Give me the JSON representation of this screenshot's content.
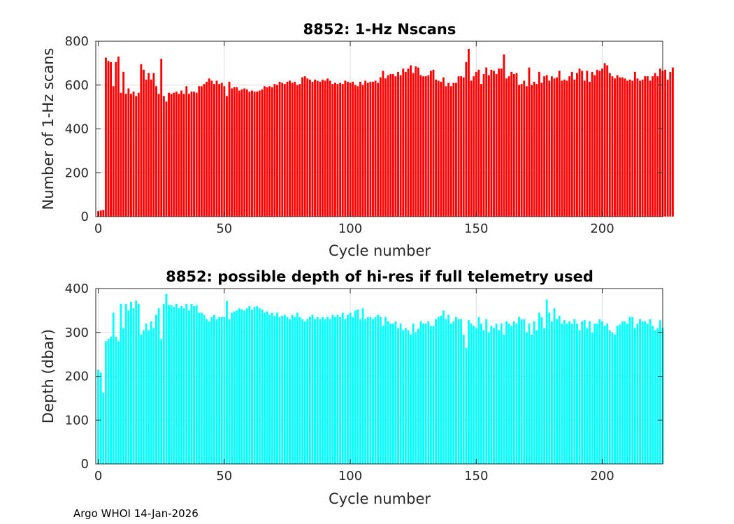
{
  "footer": "Argo WHOI 14-Jan-2026",
  "chart_data": [
    {
      "type": "bar",
      "title": "8852: 1-Hz Nscans",
      "xlabel": "Cycle number",
      "ylabel": "Number of 1-Hz scans",
      "xlim": [
        -1,
        224
      ],
      "ylim": [
        0,
        800
      ],
      "xticks": [
        0,
        50,
        100,
        150,
        200
      ],
      "yticks": [
        0,
        200,
        400,
        600,
        800
      ],
      "grid": true,
      "color": "#ff0000",
      "x_start": 0,
      "values": [
        25,
        28,
        30,
        725,
        710,
        705,
        595,
        705,
        730,
        565,
        660,
        560,
        585,
        560,
        570,
        550,
        565,
        695,
        670,
        625,
        655,
        625,
        655,
        595,
        560,
        720,
        550,
        525,
        565,
        560,
        565,
        570,
        560,
        575,
        560,
        595,
        560,
        570,
        570,
        565,
        595,
        595,
        605,
        615,
        630,
        620,
        605,
        620,
        605,
        610,
        595,
        550,
        615,
        585,
        590,
        590,
        575,
        580,
        585,
        580,
        570,
        575,
        570,
        570,
        575,
        580,
        595,
        590,
        595,
        590,
        605,
        600,
        615,
        610,
        605,
        615,
        620,
        610,
        615,
        600,
        605,
        635,
        640,
        630,
        625,
        615,
        625,
        620,
        615,
        625,
        620,
        630,
        620,
        605,
        610,
        605,
        610,
        605,
        620,
        615,
        610,
        615,
        600,
        595,
        615,
        600,
        620,
        610,
        615,
        615,
        620,
        610,
        635,
        665,
        630,
        645,
        650,
        650,
        640,
        660,
        645,
        675,
        660,
        675,
        690,
        655,
        685,
        680,
        645,
        640,
        640,
        645,
        665,
        670,
        625,
        620,
        615,
        635,
        595,
        610,
        595,
        610,
        610,
        640,
        640,
        635,
        705,
        765,
        620,
        640,
        660,
        670,
        605,
        650,
        680,
        645,
        670,
        665,
        650,
        675,
        675,
        740,
        630,
        640,
        660,
        650,
        655,
        600,
        605,
        620,
        595,
        680,
        600,
        615,
        605,
        660,
        610,
        640,
        645,
        620,
        640,
        630,
        635,
        665,
        620,
        625,
        620,
        640,
        660,
        625,
        655,
        675,
        665,
        620,
        665,
        615,
        660,
        645,
        670,
        665,
        675,
        700,
        690,
        655,
        640,
        630,
        645,
        635,
        635,
        630,
        620,
        625,
        620,
        660,
        630,
        620,
        625,
        640,
        640,
        620,
        640,
        655,
        640,
        675,
        665,
        670,
        625,
        660,
        680
      ]
    },
    {
      "type": "bar",
      "title": "8852: possible depth of hi-res if full telemetry used",
      "xlabel": "Cycle number",
      "ylabel": "Depth (dbar)",
      "xlim": [
        -1,
        224
      ],
      "ylim": [
        0,
        400
      ],
      "xticks": [
        0,
        50,
        100,
        150,
        200
      ],
      "yticks": [
        0,
        100,
        200,
        300,
        400
      ],
      "grid": true,
      "color": "#00ffff",
      "x_start": 0,
      "values": [
        215,
        208,
        163,
        280,
        285,
        290,
        345,
        290,
        280,
        365,
        310,
        365,
        350,
        370,
        355,
        372,
        365,
        295,
        305,
        320,
        305,
        325,
        310,
        340,
        355,
        285,
        365,
        388,
        362,
        362,
        358,
        365,
        355,
        360,
        355,
        365,
        350,
        365,
        360,
        362,
        345,
        345,
        340,
        330,
        325,
        335,
        340,
        330,
        335,
        335,
        335,
        372,
        330,
        345,
        348,
        350,
        355,
        352,
        350,
        355,
        360,
        352,
        358,
        360,
        355,
        352,
        345,
        348,
        340,
        345,
        338,
        345,
        335,
        338,
        340,
        335,
        330,
        340,
        335,
        345,
        335,
        330,
        325,
        330,
        335,
        340,
        330,
        335,
        330,
        335,
        330,
        335,
        330,
        340,
        335,
        340,
        335,
        345,
        330,
        340,
        345,
        335,
        350,
        352,
        330,
        355,
        330,
        335,
        335,
        330,
        335,
        340,
        335,
        315,
        335,
        325,
        320,
        320,
        325,
        310,
        320,
        305,
        310,
        305,
        295,
        320,
        300,
        308,
        325,
        320,
        320,
        325,
        315,
        315,
        330,
        335,
        338,
        350,
        330,
        340,
        320,
        325,
        335,
        330,
        330,
        295,
        265,
        328,
        320,
        315,
        310,
        335,
        320,
        305,
        330,
        300,
        315,
        310,
        320,
        305,
        320,
        295,
        325,
        320,
        315,
        325,
        320,
        335,
        330,
        330,
        300,
        320,
        295,
        325,
        305,
        345,
        335,
        310,
        375,
        345,
        325,
        355,
        330,
        338,
        320,
        328,
        320,
        325,
        320,
        330,
        320,
        305,
        325,
        328,
        310,
        325,
        300,
        320,
        320,
        330,
        325,
        315,
        320,
        305,
        300,
        295,
        315,
        318,
        325,
        325,
        320,
        335,
        335,
        310,
        320,
        330,
        325,
        325,
        320,
        330,
        315,
        305,
        310,
        328,
        310
      ]
    }
  ]
}
